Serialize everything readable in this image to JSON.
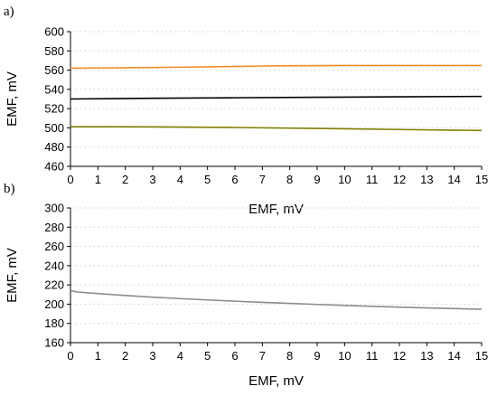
{
  "chart_data": [
    {
      "panel_label": "a)",
      "type": "line",
      "xlabel": "EMF, mV",
      "ylabel": "EMF, mV",
      "xlim": [
        0,
        15
      ],
      "ylim": [
        460,
        600
      ],
      "xticks": [
        0,
        1,
        2,
        3,
        4,
        5,
        6,
        7,
        8,
        9,
        10,
        11,
        12,
        13,
        14,
        15
      ],
      "yticks": [
        460,
        480,
        500,
        520,
        540,
        560,
        580,
        600
      ],
      "grid": "horizontal",
      "series": [
        {
          "color": "#f28c28",
          "x": [
            0,
            2,
            4,
            6,
            7,
            8,
            10,
            12,
            15
          ],
          "y": [
            562,
            562.5,
            563,
            563.8,
            564.3,
            564.6,
            564.8,
            564.8,
            564.8
          ]
        },
        {
          "color": "#000000",
          "x": [
            0,
            3,
            6,
            9,
            12,
            15
          ],
          "y": [
            530,
            530.8,
            531.3,
            531.8,
            532.3,
            532.7
          ]
        },
        {
          "color": "#808000",
          "x": [
            0,
            1,
            3,
            6,
            9,
            12,
            15
          ],
          "y": [
            501.2,
            501.2,
            501,
            500.4,
            499.4,
            498.3,
            497.3
          ]
        }
      ]
    },
    {
      "panel_label": "b)",
      "type": "line",
      "xlabel": "EMF, mV",
      "ylabel": "EMF, mV",
      "xlim": [
        0,
        15
      ],
      "ylim": [
        160,
        300
      ],
      "xticks": [
        0,
        1,
        2,
        3,
        4,
        5,
        6,
        7,
        8,
        9,
        10,
        11,
        12,
        13,
        14,
        15
      ],
      "yticks": [
        160,
        180,
        200,
        220,
        240,
        260,
        280,
        300
      ],
      "grid": "horizontal",
      "series": [
        {
          "color": "#8c8c8c",
          "x": [
            0,
            0.3,
            1,
            2,
            3,
            4,
            5,
            6,
            7,
            8,
            9,
            10,
            11,
            12,
            13,
            14,
            15
          ],
          "y": [
            214,
            212.5,
            211,
            209,
            207.3,
            205.8,
            204.4,
            203.1,
            201.9,
            200.8,
            199.7,
            198.7,
            197.8,
            196.9,
            196.1,
            195.4,
            194.7
          ]
        }
      ]
    }
  ]
}
